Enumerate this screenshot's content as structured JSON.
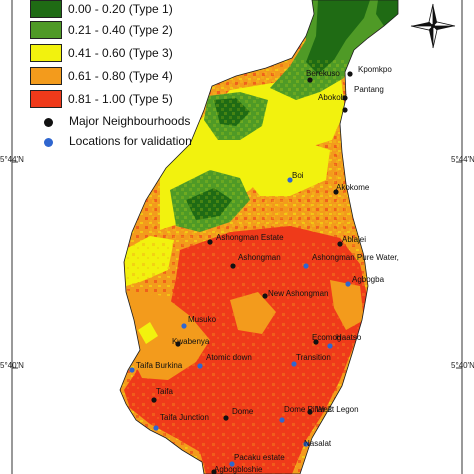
{
  "colors": {
    "type1": "#1f6b14",
    "type2": "#4f9a26",
    "type3": "#f2f20e",
    "type4": "#f39b1c",
    "type5": "#ef3a1a",
    "major_dot": "#111111",
    "validation_dot": "#2f66cf",
    "frame": "#333333"
  },
  "legend": {
    "classes": [
      {
        "label": "0.00 - 0.20 (Type 1)",
        "color": "#1f6b14"
      },
      {
        "label": "0.21 - 0.40 (Type 2)",
        "color": "#4f9a26"
      },
      {
        "label": "0.41 - 0.60 (Type 3)",
        "color": "#f2f20e"
      },
      {
        "label": "0.61 - 0.80 (Type 4)",
        "color": "#f39b1c"
      },
      {
        "label": "0.81 - 1.00 (Type 5)",
        "color": "#ef3a1a"
      }
    ],
    "symbols": [
      {
        "label": "Major Neighbourhoods",
        "color": "#111111"
      },
      {
        "label": "Locations for validation",
        "color": "#2f66cf"
      }
    ]
  },
  "axis": {
    "lat_top_left": "5°44'N",
    "lat_top_right": "5°44'N",
    "lat_bottom_left": "5°40'N",
    "lat_bottom_right": "5°40'N"
  },
  "north_arrow": {
    "label": "north-arrow",
    "icon": "compass-star-icon"
  },
  "places": [
    {
      "name": "Berekuso",
      "kind": "major"
    },
    {
      "name": "Kpomkpo",
      "kind": "major"
    },
    {
      "name": "Abokobi",
      "kind": "major"
    },
    {
      "name": "Pantang",
      "kind": "major"
    },
    {
      "name": "Boi",
      "kind": "validation"
    },
    {
      "name": "Akokome",
      "kind": "major"
    },
    {
      "name": "Ashongman Estate",
      "kind": "major"
    },
    {
      "name": "Ablajei",
      "kind": "major"
    },
    {
      "name": "Ashongman",
      "kind": "major"
    },
    {
      "name": "Ashongman Pure Water,",
      "kind": "validation"
    },
    {
      "name": "Agbogba",
      "kind": "validation"
    },
    {
      "name": "New Ashongman",
      "kind": "major"
    },
    {
      "name": "Musuko",
      "kind": "validation"
    },
    {
      "name": "Kwabenya",
      "kind": "major"
    },
    {
      "name": "Ecomog",
      "kind": "major"
    },
    {
      "name": "Haatso",
      "kind": "validation"
    },
    {
      "name": "Atomic down",
      "kind": "validation"
    },
    {
      "name": "Taifa Burkina",
      "kind": "validation"
    },
    {
      "name": "Transition",
      "kind": "validation"
    },
    {
      "name": "Taifa",
      "kind": "major"
    },
    {
      "name": "Dome",
      "kind": "major"
    },
    {
      "name": "Dome Pillar 2",
      "kind": "validation"
    },
    {
      "name": "West Legon",
      "kind": "major"
    },
    {
      "name": "Taifa Junction",
      "kind": "validation"
    },
    {
      "name": "Nasalat",
      "kind": "validation"
    },
    {
      "name": "Pacaku estate",
      "kind": "validation"
    },
    {
      "name": "Agbogbloshie",
      "kind": "major"
    }
  ]
}
